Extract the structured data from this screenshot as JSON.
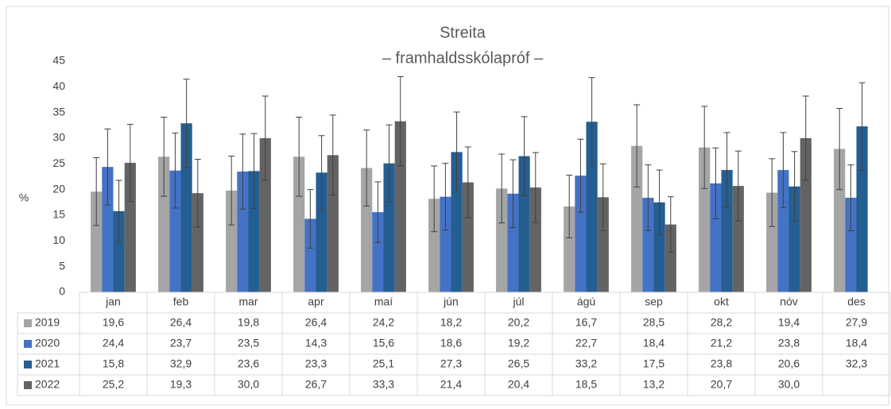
{
  "chart_data": {
    "type": "bar",
    "title": "Streita",
    "subtitle": "– framhaldsskólapróf –",
    "y_label": "%",
    "categories": [
      "jan",
      "feb",
      "mar",
      "apr",
      "maí",
      "jún",
      "júl",
      "ágú",
      "sep",
      "okt",
      "nóv",
      "des"
    ],
    "ylim": [
      0,
      45
    ],
    "yticks": [
      0,
      5,
      10,
      15,
      20,
      25,
      30,
      35,
      40,
      45
    ],
    "grid": false,
    "data_table": true,
    "series": [
      {
        "name": "2019",
        "color": "#a5a5a5",
        "values": [
          19.6,
          26.4,
          19.8,
          26.4,
          24.2,
          18.2,
          20.2,
          16.7,
          28.5,
          28.2,
          19.4,
          27.9
        ],
        "value_labels": [
          "19,6",
          "26,4",
          "19,8",
          "26,4",
          "24,2",
          "18,2",
          "20,2",
          "16,7",
          "28,5",
          "28,2",
          "19,4",
          "27,9"
        ],
        "errors": [
          6.6,
          7.7,
          6.7,
          7.7,
          7.4,
          6.4,
          6.7,
          6.1,
          8.0,
          8.0,
          6.6,
          7.9
        ]
      },
      {
        "name": "2020",
        "color": "#4472c4",
        "values": [
          24.4,
          23.7,
          23.5,
          14.3,
          15.6,
          18.6,
          19.2,
          22.7,
          18.4,
          21.2,
          23.8,
          18.4
        ],
        "value_labels": [
          "24,4",
          "23,7",
          "23,5",
          "14,3",
          "15,6",
          "18,6",
          "19,2",
          "22,7",
          "18,4",
          "21,2",
          "23,8",
          "18,4"
        ],
        "errors": [
          7.4,
          7.3,
          7.3,
          5.7,
          5.9,
          6.5,
          6.6,
          7.1,
          6.4,
          6.9,
          7.3,
          6.4
        ]
      },
      {
        "name": "2021",
        "color": "#255e91",
        "values": [
          15.8,
          32.9,
          23.6,
          23.3,
          25.1,
          27.3,
          26.5,
          33.2,
          17.5,
          23.8,
          20.6,
          32.3
        ],
        "value_labels": [
          "15,8",
          "32,9",
          "23,6",
          "23,3",
          "25,1",
          "27,3",
          "26,5",
          "33,2",
          "17,5",
          "23,8",
          "20,6",
          "32,3"
        ],
        "errors": [
          6.0,
          8.6,
          7.3,
          7.2,
          7.5,
          7.8,
          7.7,
          8.6,
          6.3,
          7.3,
          6.8,
          8.5
        ]
      },
      {
        "name": "2022",
        "color": "#636363",
        "values": [
          25.2,
          19.3,
          30.0,
          26.7,
          33.3,
          21.4,
          20.4,
          18.5,
          13.2,
          20.7,
          30.0,
          null
        ],
        "value_labels": [
          "25,2",
          "19,3",
          "30,0",
          "26,7",
          "33,3",
          "21,4",
          "20,4",
          "18,5",
          "13,2",
          "20,7",
          "30,0",
          null
        ],
        "errors": [
          7.5,
          6.6,
          8.2,
          7.8,
          8.7,
          6.9,
          6.8,
          6.5,
          5.4,
          6.8,
          8.2,
          null
        ]
      }
    ]
  }
}
